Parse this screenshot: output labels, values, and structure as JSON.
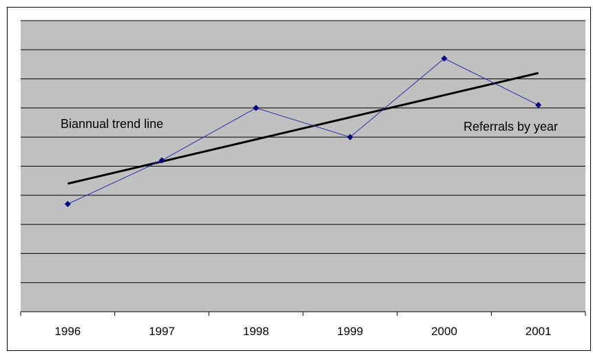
{
  "chart_data": {
    "type": "line",
    "title": "",
    "xlabel": "",
    "ylabel": "",
    "categories": [
      "1996",
      "1997",
      "1998",
      "1999",
      "2000",
      "2001"
    ],
    "ylim": [
      0,
      10
    ],
    "y_ticks_shown": false,
    "grid": true,
    "plot_background": "#c0c0c0",
    "series": [
      {
        "values": [
          3.7,
          5.2,
          7.0,
          6.0,
          8.7,
          7.1
        ],
        "color": "#2a2aa8",
        "marker": "diamond",
        "marker_color": "#000080"
      }
    ],
    "trend_line": {
      "start": [
        1996,
        4.4
      ],
      "end": [
        2001,
        8.2
      ],
      "color": "#000000"
    },
    "annotations": [
      {
        "id": "trend",
        "text": "Biannual trend line"
      },
      {
        "id": "series",
        "text": "Referrals by year"
      }
    ]
  }
}
